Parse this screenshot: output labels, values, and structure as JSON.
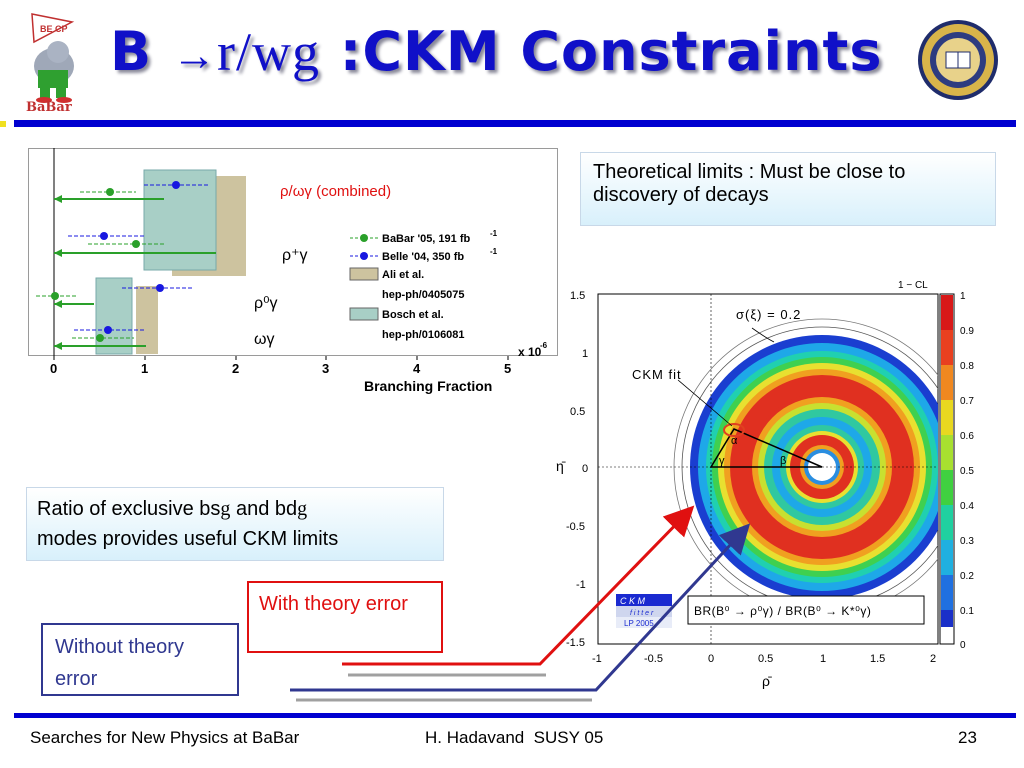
{
  "slide": {
    "title_prefix": "B ",
    "title_arrow": "→",
    "title_mid": "r/wg",
    "title_rest": " :CKM Constraints",
    "logo_babar": "BaBar",
    "logo_babar_small": "BE CP",
    "theory_box": "Theoretical limits : Must be close to discovery of decays",
    "ratio_box_line1": "Ratio of exclusive b\u0001s",
    "ratio_box_g1": "g",
    "ratio_box_mid": " and b\u0001d",
    "ratio_box_g2": "g",
    "ratio_box_line2": "modes provides useful CKM limits",
    "with_theory": "With theory error",
    "without_theory": "Without theory error",
    "footer_left": "Searches for New Physics at BaBar",
    "footer_center": "H. Hadavand  SUSY 05",
    "footer_right": "23"
  },
  "left_plot": {
    "xlabel": "Branching Fraction",
    "xscale": "x 10",
    "xscale_exp": "-6",
    "xticks": [
      "0",
      "1",
      "2",
      "3",
      "4",
      "5"
    ],
    "combined_label": "ρ/ωγ (combined)",
    "row_labels": [
      "ρ⁺γ",
      "ρ⁰γ",
      "ωγ"
    ],
    "legend": [
      {
        "label": "BaBar '05, 191 fb",
        "sup": "-1",
        "color": "#2aa02a",
        "kind": "marker"
      },
      {
        "label": "Belle '04, 350 fb",
        "sup": "-1",
        "color": "#1818e0",
        "kind": "marker"
      },
      {
        "label": "Ali et al.",
        "color": "#cdc39f",
        "kind": "box"
      },
      {
        "label": "hep-ph/0405075",
        "kind": "text"
      },
      {
        "label": "Bosch et al.",
        "color": "#a8cfc6",
        "kind": "box"
      },
      {
        "label": "hep-ph/0106081",
        "kind": "text"
      }
    ],
    "colors": {
      "babar": "#2aa02a",
      "belle": "#1818e0",
      "ali": "#cdc39f",
      "bosch": "#a8cfc6"
    }
  },
  "right_plot": {
    "cl_label": "1 − CL",
    "sigma_label": "σ(ξ) = 0.2",
    "ckm_fit": "CKM fit",
    "xlabel": "ρ̄",
    "ylabel": "η̄",
    "xticks": [
      "-1",
      "-0.5",
      "0",
      "0.5",
      "1",
      "1.5",
      "2"
    ],
    "yticks": [
      "1.5",
      "1",
      "0.5",
      "0",
      "-0.5",
      "-1",
      "-1.5"
    ],
    "colorbar_ticks": [
      "1",
      "0.9",
      "0.8",
      "0.7",
      "0.6",
      "0.5",
      "0.4",
      "0.3",
      "0.2",
      "0.1",
      "0"
    ],
    "ratio_label": "BR(B⁰ → ρ⁰γ) / BR(B⁰ → K*⁰γ)",
    "angle_alpha": "α",
    "angle_beta": "β",
    "angle_gamma": "γ",
    "ckmfitter": [
      "C K M",
      "f i t t e r",
      "LP 2005"
    ]
  }
}
